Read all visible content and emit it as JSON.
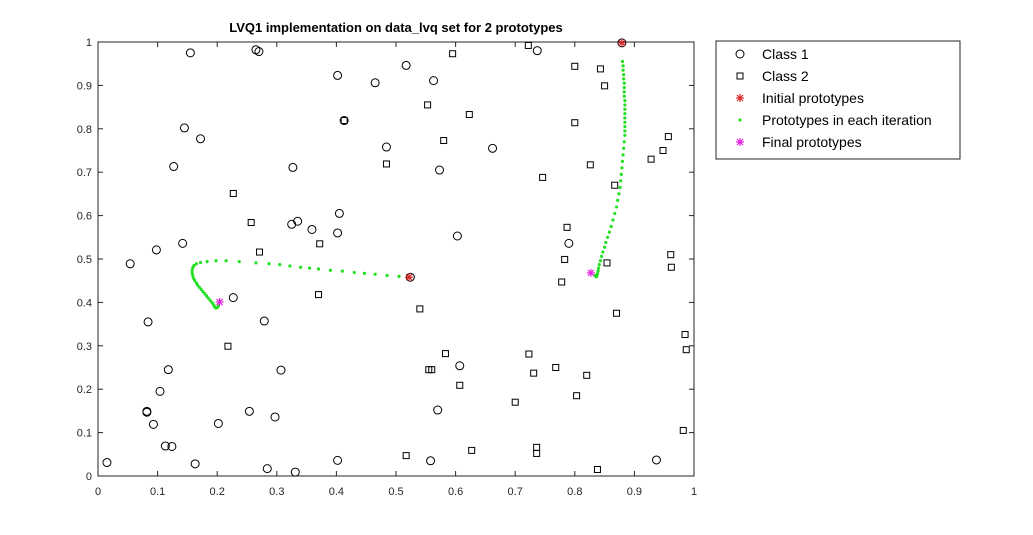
{
  "chart_data": {
    "type": "scatter",
    "title": "LVQ1 implementation on data_lvq set for 2 prototypes",
    "xlabel": "",
    "ylabel": "",
    "xlim": [
      0,
      1
    ],
    "ylim": [
      0,
      1
    ],
    "x_ticks": [
      "0",
      "0.1",
      "0.2",
      "0.3",
      "0.4",
      "0.5",
      "0.6",
      "0.7",
      "0.8",
      "0.9",
      "1"
    ],
    "y_ticks": [
      "0",
      "0.1",
      "0.2",
      "0.3",
      "0.4",
      "0.5",
      "0.6",
      "0.7",
      "0.8",
      "0.9",
      "1"
    ],
    "grid": false,
    "legend_position": "top-right outside",
    "colors": {
      "initial": "#d62728",
      "iteration": "#22e022",
      "final": "#e020e0",
      "markers": "#000000"
    },
    "series": [
      {
        "name": "Class 1",
        "marker": "circle",
        "points": [
          [
            0.155,
            0.975
          ],
          [
            0.265,
            0.982
          ],
          [
            0.27,
            0.978
          ],
          [
            0.517,
            0.946
          ],
          [
            0.402,
            0.923
          ],
          [
            0.465,
            0.906
          ],
          [
            0.563,
            0.911
          ],
          [
            0.737,
            0.98
          ],
          [
            0.413,
            0.819
          ],
          [
            0.145,
            0.802
          ],
          [
            0.172,
            0.777
          ],
          [
            0.484,
            0.758
          ],
          [
            0.662,
            0.755
          ],
          [
            0.127,
            0.713
          ],
          [
            0.327,
            0.711
          ],
          [
            0.573,
            0.705
          ],
          [
            0.405,
            0.605
          ],
          [
            0.335,
            0.587
          ],
          [
            0.325,
            0.58
          ],
          [
            0.359,
            0.568
          ],
          [
            0.402,
            0.56
          ],
          [
            0.603,
            0.553
          ],
          [
            0.142,
            0.536
          ],
          [
            0.098,
            0.521
          ],
          [
            0.79,
            0.536
          ],
          [
            0.054,
            0.489
          ],
          [
            0.524,
            0.458
          ],
          [
            0.227,
            0.411
          ],
          [
            0.084,
            0.355
          ],
          [
            0.279,
            0.357
          ],
          [
            0.118,
            0.245
          ],
          [
            0.307,
            0.244
          ],
          [
            0.607,
            0.254
          ],
          [
            0.104,
            0.195
          ],
          [
            0.082,
            0.149
          ],
          [
            0.082,
            0.147
          ],
          [
            0.254,
            0.149
          ],
          [
            0.297,
            0.136
          ],
          [
            0.57,
            0.152
          ],
          [
            0.093,
            0.119
          ],
          [
            0.202,
            0.121
          ],
          [
            0.113,
            0.069
          ],
          [
            0.124,
            0.068
          ],
          [
            0.015,
            0.031
          ],
          [
            0.163,
            0.028
          ],
          [
            0.402,
            0.036
          ],
          [
            0.558,
            0.035
          ],
          [
            0.284,
            0.017
          ],
          [
            0.331,
            0.009
          ],
          [
            0.937,
            0.037
          ],
          [
            0.879,
            0.998
          ]
        ]
      },
      {
        "name": "Class 2",
        "marker": "square",
        "points": [
          [
            0.722,
            0.992
          ],
          [
            0.595,
            0.973
          ],
          [
            0.8,
            0.944
          ],
          [
            0.843,
            0.938
          ],
          [
            0.85,
            0.899
          ],
          [
            0.553,
            0.855
          ],
          [
            0.623,
            0.833
          ],
          [
            0.957,
            0.782
          ],
          [
            0.58,
            0.773
          ],
          [
            0.8,
            0.814
          ],
          [
            0.948,
            0.75
          ],
          [
            0.928,
            0.73
          ],
          [
            0.826,
            0.717
          ],
          [
            0.484,
            0.719
          ],
          [
            0.746,
            0.688
          ],
          [
            0.867,
            0.67
          ],
          [
            0.227,
            0.651
          ],
          [
            0.257,
            0.584
          ],
          [
            0.787,
            0.573
          ],
          [
            0.372,
            0.535
          ],
          [
            0.271,
            0.516
          ],
          [
            0.961,
            0.51
          ],
          [
            0.783,
            0.499
          ],
          [
            0.962,
            0.481
          ],
          [
            0.854,
            0.491
          ],
          [
            0.778,
            0.447
          ],
          [
            0.37,
            0.418
          ],
          [
            0.54,
            0.385
          ],
          [
            0.87,
            0.375
          ],
          [
            0.985,
            0.326
          ],
          [
            0.218,
            0.299
          ],
          [
            0.987,
            0.291
          ],
          [
            0.583,
            0.282
          ],
          [
            0.723,
            0.281
          ],
          [
            0.768,
            0.25
          ],
          [
            0.555,
            0.245
          ],
          [
            0.56,
            0.245
          ],
          [
            0.731,
            0.237
          ],
          [
            0.82,
            0.232
          ],
          [
            0.607,
            0.209
          ],
          [
            0.803,
            0.185
          ],
          [
            0.7,
            0.17
          ],
          [
            0.982,
            0.105
          ],
          [
            0.736,
            0.066
          ],
          [
            0.736,
            0.052
          ],
          [
            0.627,
            0.059
          ],
          [
            0.517,
            0.047
          ],
          [
            0.838,
            0.015
          ],
          [
            0.413,
            0.819
          ]
        ]
      },
      {
        "name": "Initial prototypes",
        "marker": "asterisk",
        "points": [
          [
            0.522,
            0.458
          ],
          [
            0.879,
            0.998
          ]
        ]
      },
      {
        "name": "Prototypes in each iteration",
        "marker": "dot",
        "points": [
          [
            0.505,
            0.46
          ],
          [
            0.485,
            0.462
          ],
          [
            0.465,
            0.465
          ],
          [
            0.447,
            0.467
          ],
          [
            0.43,
            0.469
          ],
          [
            0.41,
            0.472
          ],
          [
            0.39,
            0.474
          ],
          [
            0.37,
            0.477
          ],
          [
            0.355,
            0.479
          ],
          [
            0.34,
            0.481
          ],
          [
            0.322,
            0.484
          ],
          [
            0.305,
            0.487
          ],
          [
            0.287,
            0.489
          ],
          [
            0.265,
            0.491
          ],
          [
            0.237,
            0.494
          ],
          [
            0.215,
            0.496
          ],
          [
            0.198,
            0.496
          ],
          [
            0.183,
            0.494
          ],
          [
            0.172,
            0.492
          ],
          [
            0.165,
            0.489
          ],
          [
            0.161,
            0.485
          ],
          [
            0.159,
            0.48
          ],
          [
            0.158,
            0.474
          ],
          [
            0.158,
            0.468
          ],
          [
            0.159,
            0.462
          ],
          [
            0.16,
            0.456
          ],
          [
            0.162,
            0.451
          ],
          [
            0.165,
            0.445
          ],
          [
            0.167,
            0.44
          ],
          [
            0.17,
            0.435
          ],
          [
            0.173,
            0.43
          ],
          [
            0.176,
            0.425
          ],
          [
            0.179,
            0.42
          ],
          [
            0.182,
            0.415
          ],
          [
            0.185,
            0.41
          ],
          [
            0.188,
            0.405
          ],
          [
            0.191,
            0.4
          ],
          [
            0.193,
            0.396
          ],
          [
            0.195,
            0.392
          ],
          [
            0.196,
            0.389
          ],
          [
            0.198,
            0.387
          ],
          [
            0.2,
            0.388
          ],
          [
            0.202,
            0.392
          ],
          [
            0.88,
            0.955
          ],
          [
            0.881,
            0.945
          ],
          [
            0.881,
            0.935
          ],
          [
            0.882,
            0.925
          ],
          [
            0.882,
            0.915
          ],
          [
            0.883,
            0.905
          ],
          [
            0.883,
            0.895
          ],
          [
            0.883,
            0.885
          ],
          [
            0.883,
            0.875
          ],
          [
            0.884,
            0.865
          ],
          [
            0.884,
            0.855
          ],
          [
            0.884,
            0.845
          ],
          [
            0.884,
            0.835
          ],
          [
            0.884,
            0.825
          ],
          [
            0.884,
            0.815
          ],
          [
            0.884,
            0.805
          ],
          [
            0.884,
            0.795
          ],
          [
            0.884,
            0.785
          ],
          [
            0.883,
            0.77
          ],
          [
            0.882,
            0.755
          ],
          [
            0.881,
            0.74
          ],
          [
            0.88,
            0.725
          ],
          [
            0.879,
            0.71
          ],
          [
            0.878,
            0.695
          ],
          [
            0.877,
            0.68
          ],
          [
            0.876,
            0.665
          ],
          [
            0.874,
            0.65
          ],
          [
            0.872,
            0.635
          ],
          [
            0.87,
            0.62
          ],
          [
            0.867,
            0.605
          ],
          [
            0.864,
            0.59
          ],
          [
            0.861,
            0.575
          ],
          [
            0.858,
            0.562
          ],
          [
            0.855,
            0.55
          ],
          [
            0.852,
            0.538
          ],
          [
            0.85,
            0.527
          ],
          [
            0.847,
            0.516
          ],
          [
            0.845,
            0.506
          ],
          [
            0.843,
            0.496
          ],
          [
            0.841,
            0.487
          ],
          [
            0.84,
            0.479
          ],
          [
            0.839,
            0.472
          ],
          [
            0.838,
            0.466
          ],
          [
            0.837,
            0.461
          ],
          [
            0.836,
            0.459
          ],
          [
            0.834,
            0.462
          ]
        ]
      },
      {
        "name": "Final prototypes",
        "marker": "asterisk",
        "points": [
          [
            0.204,
            0.401
          ],
          [
            0.827,
            0.468
          ]
        ]
      }
    ]
  }
}
